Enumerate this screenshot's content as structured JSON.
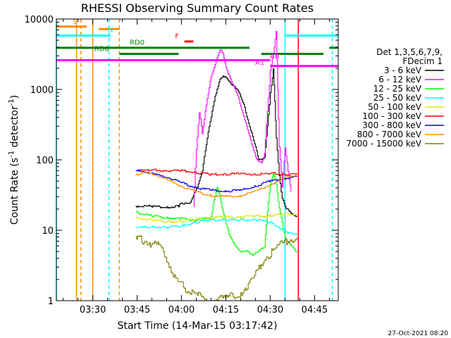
{
  "chart_data": {
    "type": "line",
    "title": "RHESSI Observing Summary Count Rates",
    "xlabel_prefix": "Start Time (",
    "start_time": "14-Mar-15 03:17:42",
    "xlabel_suffix": ")",
    "ylabel": "Count Rate (s",
    "ylabel_exp": "-1",
    "ylabel_unit": " detector",
    "ylabel_close": ")",
    "y_scale": "log",
    "ylim": [
      1,
      10000
    ],
    "xlim": [
      "03:17:42",
      "04:53:00"
    ],
    "x_ticks": [
      "03:30",
      "03:45",
      "04:00",
      "04:15",
      "04:30",
      "04:45"
    ],
    "y_ticks": [
      "1",
      "10",
      "100",
      "1000",
      "10000"
    ],
    "legend_header": [
      "Det 1,3,5,6,7,9,",
      "FDecim 1"
    ],
    "series": [
      {
        "name": "3 - 6 keV",
        "color": "#000000",
        "points": [
          [
            "03:44:30",
            22
          ],
          [
            "03:50",
            22
          ],
          [
            "03:55",
            21
          ],
          [
            "03:59",
            22
          ],
          [
            "04:00",
            24
          ],
          [
            "04:03",
            25
          ],
          [
            "04:05",
            38
          ],
          [
            "04:07",
            70
          ],
          [
            "04:09",
            250
          ],
          [
            "04:11",
            700
          ],
          [
            "04:13",
            1400
          ],
          [
            "04:14",
            1600
          ],
          [
            "04:16",
            1300
          ],
          [
            "04:19",
            1000
          ],
          [
            "04:21",
            600
          ],
          [
            "04:23",
            300
          ],
          [
            "04:25",
            150
          ],
          [
            "04:26",
            105
          ],
          [
            "04:27",
            100
          ],
          [
            "04:28",
            110
          ],
          [
            "04:29",
            300
          ],
          [
            "04:30",
            900
          ],
          [
            "04:31",
            1900
          ],
          [
            "04:31:30",
            700
          ],
          [
            "04:32",
            200
          ],
          [
            "04:33",
            60
          ],
          [
            "04:34",
            28
          ],
          [
            "04:35",
            22
          ],
          [
            "04:37",
            17
          ],
          [
            "04:39",
            16
          ]
        ]
      },
      {
        "name": "6 - 12 keV",
        "color": "#ff00ff",
        "points": [
          [
            "04:04",
            22
          ],
          [
            "04:05",
            140
          ],
          [
            "04:06",
            480
          ],
          [
            "04:07",
            230
          ],
          [
            "04:08",
            500
          ],
          [
            "04:10",
            1500
          ],
          [
            "04:12",
            2900
          ],
          [
            "04:13",
            3600
          ],
          [
            "04:14",
            3300
          ],
          [
            "04:15",
            2000
          ],
          [
            "04:17",
            1300
          ],
          [
            "04:19",
            800
          ],
          [
            "04:21",
            420
          ],
          [
            "04:23",
            210
          ],
          [
            "04:25",
            115
          ],
          [
            "04:26",
            92
          ],
          [
            "04:27",
            92
          ],
          [
            "04:28",
            120
          ],
          [
            "04:29",
            500
          ],
          [
            "04:30",
            1800
          ],
          [
            "04:31",
            3300
          ],
          [
            "04:32",
            6500
          ],
          [
            "04:32:30",
            1000
          ],
          [
            "04:33",
            150
          ],
          [
            "04:34",
            42
          ],
          [
            "04:35",
            145
          ],
          [
            "04:36",
            70
          ],
          [
            "04:37",
            35
          ]
        ]
      },
      {
        "name": "12 - 25 keV",
        "color": "#00ff00",
        "points": [
          [
            "03:44:30",
            18
          ],
          [
            "03:50",
            16
          ],
          [
            "03:55",
            15
          ],
          [
            "03:59",
            15
          ],
          [
            "04:02",
            14
          ],
          [
            "04:05",
            14
          ],
          [
            "04:10",
            15
          ],
          [
            "04:11",
            28
          ],
          [
            "04:12",
            40
          ],
          [
            "04:13",
            30
          ],
          [
            "04:14",
            18
          ],
          [
            "04:16",
            9
          ],
          [
            "04:18",
            6
          ],
          [
            "04:20",
            5
          ],
          [
            "04:22",
            5
          ],
          [
            "04:24",
            4.5
          ],
          [
            "04:26",
            5
          ],
          [
            "04:28",
            6
          ],
          [
            "04:29",
            18
          ],
          [
            "04:30",
            45
          ],
          [
            "04:31",
            65
          ],
          [
            "04:32",
            45
          ],
          [
            "04:33",
            20
          ],
          [
            "04:35",
            8
          ],
          [
            "04:37",
            6
          ],
          [
            "04:39",
            5
          ]
        ]
      },
      {
        "name": "25 - 50 keV",
        "color": "#00ffff",
        "points": [
          [
            "03:44:30",
            11
          ],
          [
            "03:50",
            11
          ],
          [
            "03:55",
            11
          ],
          [
            "04:00",
            11.5
          ],
          [
            "04:05",
            13
          ],
          [
            "04:10",
            14
          ],
          [
            "04:15",
            14
          ],
          [
            "04:20",
            14
          ],
          [
            "04:25",
            14
          ],
          [
            "04:30",
            13
          ],
          [
            "04:33",
            11
          ],
          [
            "04:36",
            9
          ],
          [
            "04:39",
            9
          ]
        ]
      },
      {
        "name": "50 - 100 keV",
        "color": "#e6e600",
        "points": [
          [
            "03:44:30",
            15
          ],
          [
            "03:50",
            14
          ],
          [
            "03:55",
            13
          ],
          [
            "04:00",
            13.5
          ],
          [
            "04:05",
            14.5
          ],
          [
            "04:10",
            15
          ],
          [
            "04:15",
            15.5
          ],
          [
            "04:20",
            15.5
          ],
          [
            "04:25",
            16
          ],
          [
            "04:30",
            16
          ],
          [
            "04:35",
            17
          ],
          [
            "04:39",
            17
          ]
        ]
      },
      {
        "name": "100 - 300 keV",
        "color": "#ff0000",
        "points": [
          [
            "03:44:30",
            70
          ],
          [
            "03:50",
            72
          ],
          [
            "03:55",
            70
          ],
          [
            "04:00",
            70
          ],
          [
            "04:05",
            66
          ],
          [
            "04:10",
            62
          ],
          [
            "04:15",
            62
          ],
          [
            "04:20",
            64
          ],
          [
            "04:25",
            62
          ],
          [
            "04:30",
            64
          ],
          [
            "04:35",
            62
          ],
          [
            "04:39",
            62
          ]
        ]
      },
      {
        "name": "300 - 800 keV",
        "color": "#0000ff",
        "points": [
          [
            "03:44:30",
            70
          ],
          [
            "03:48",
            68
          ],
          [
            "03:52",
            60
          ],
          [
            "03:56",
            55
          ],
          [
            "04:00",
            47
          ],
          [
            "04:05",
            40
          ],
          [
            "04:10",
            37
          ],
          [
            "04:15",
            36
          ],
          [
            "04:20",
            37
          ],
          [
            "04:25",
            42
          ],
          [
            "04:30",
            50
          ],
          [
            "04:35",
            55
          ],
          [
            "04:39",
            58
          ]
        ]
      },
      {
        "name": "800 - 7000 keV",
        "color": "#ff8c00",
        "points": [
          [
            "03:44:30",
            62
          ],
          [
            "03:48",
            66
          ],
          [
            "03:52",
            59
          ],
          [
            "03:56",
            50
          ],
          [
            "04:00",
            42
          ],
          [
            "04:05",
            35
          ],
          [
            "04:10",
            31
          ],
          [
            "04:15",
            30
          ],
          [
            "04:20",
            31
          ],
          [
            "04:25",
            36
          ],
          [
            "04:30",
            45
          ],
          [
            "04:35",
            55
          ],
          [
            "04:39",
            62
          ]
        ]
      },
      {
        "name": "7000 - 15000 keV",
        "color": "#808000",
        "points": [
          [
            "03:44:30",
            7.5
          ],
          [
            "03:48",
            7
          ],
          [
            "03:52",
            6
          ],
          [
            "03:55",
            4
          ],
          [
            "03:58",
            2
          ],
          [
            "04:01",
            1.5
          ],
          [
            "04:05",
            1.2
          ],
          [
            "04:10",
            1
          ],
          [
            "04:15",
            1.1
          ],
          [
            "04:20",
            1.3
          ],
          [
            "04:24",
            2
          ],
          [
            "04:28",
            4
          ],
          [
            "04:33",
            6
          ],
          [
            "04:37",
            7.5
          ],
          [
            "04:39",
            8
          ]
        ]
      }
    ],
    "state_bars": [
      {
        "label": "S",
        "color": "#ff8c00",
        "start": "03:17:42",
        "end": "03:28:00",
        "y": 7800,
        "label_time": "03:24:00",
        "label_y": 8500
      },
      {
        "label": "",
        "color": "#ff8c00",
        "start": "03:32:00",
        "end": "03:39:00",
        "y": 7200
      },
      {
        "label": "N",
        "color": "#00ffff",
        "start": "03:17:42",
        "end": "03:36:00",
        "y": 5800,
        "label_time": "03:36:00",
        "label_y": 6500
      },
      {
        "label": "",
        "color": "#00ffff",
        "start": "04:35:00",
        "end": "04:53:00",
        "y": 5800
      },
      {
        "label": "F",
        "color": "#ff0000",
        "start": "04:01:00",
        "end": "04:04:00",
        "y": 4800,
        "label_time": "03:58:30",
        "label_y": 5300
      },
      {
        "label": "RD0",
        "color": "#008000",
        "start": "03:17:42",
        "end": "04:23:00",
        "y": 3900,
        "label_time": "03:45:00",
        "label_y": 4300
      },
      {
        "label": "",
        "color": "#008000",
        "start": "04:50:00",
        "end": "04:53:00",
        "y": 3900
      },
      {
        "label": "RD6",
        "color": "#008000",
        "start": "03:39:00",
        "end": "03:59:00",
        "y": 3200,
        "label_time": "03:33:00",
        "label_y": 3500
      },
      {
        "label": "",
        "color": "#008000",
        "start": "04:27:00",
        "end": "04:48:00",
        "y": 3200
      },
      {
        "label": "A0",
        "color": "#ff00ff",
        "start": "03:17:42",
        "end": "04:30:00",
        "y": 2600,
        "label_time": "04:31:30",
        "label_y": 2750
      },
      {
        "label": "A1",
        "color": "#ff00ff",
        "start": "04:30:00",
        "end": "04:53:00",
        "y": 2150,
        "label_time": "04:26:30",
        "label_y": 2250
      }
    ],
    "markers": [
      {
        "time": "03:24:30",
        "color": "#ff8c00",
        "style": "solid"
      },
      {
        "time": "03:26:00",
        "color": "#ff8c00",
        "style": "dashed"
      },
      {
        "time": "03:30:00",
        "color": "#ff8c00",
        "style": "solid"
      },
      {
        "time": "03:39:00",
        "color": "#ff8c00",
        "style": "dashed"
      },
      {
        "time": "03:17:42",
        "color": "#00ffff",
        "style": "solid"
      },
      {
        "time": "03:35:30",
        "color": "#00ffff",
        "style": "dashed"
      },
      {
        "time": "04:35:00",
        "color": "#00ffff",
        "style": "solid"
      },
      {
        "time": "04:51:00",
        "color": "#00ffff",
        "style": "dashed"
      },
      {
        "time": "04:39:30",
        "color": "#ff0000",
        "style": "solid"
      }
    ],
    "grid": false,
    "legend_position": "right",
    "footer_date": "27-Oct-2021 08:20"
  }
}
